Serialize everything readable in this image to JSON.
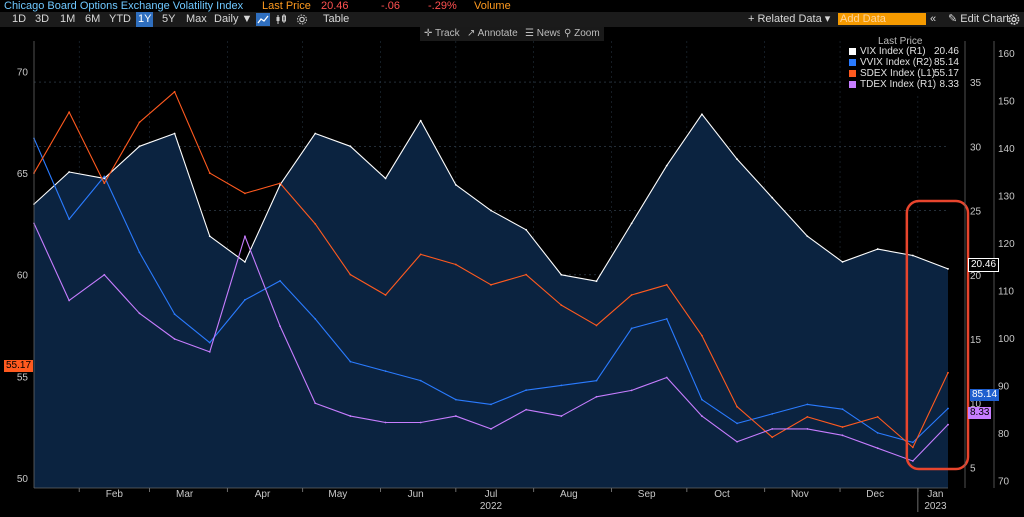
{
  "header": {
    "title": "Chicago Board Options Exchange Volatility Index",
    "last_price_label": "Last Price",
    "last_price_value": "20.46",
    "change": "-.06",
    "change_pct": "-.29%",
    "volume_label": "Volume"
  },
  "toolbar": {
    "ranges": [
      "1D",
      "3D",
      "1M",
      "6M",
      "YTD",
      "1Y",
      "5Y",
      "Max"
    ],
    "selected_range": "1Y",
    "interval": "Daily ▼",
    "table_label": "Table",
    "related_data": "+ Related Data ▾",
    "add_data_placeholder": "Add Data",
    "collapse_glyph": "«",
    "edit_chart": "✎ Edit Chart",
    "settings_icon": "gear-icon",
    "line_icon": "line-chart-icon",
    "candle_icon": "candlestick-icon"
  },
  "subtoolbar": {
    "track": "✛ Track",
    "annotate": "↗ Annotate",
    "news": "☰ News",
    "zoom": "⚲ Zoom"
  },
  "legend": {
    "header": "Last Price",
    "items": [
      {
        "label": "VIX Index  (R1)",
        "value": "20.46",
        "color": "#ffffff"
      },
      {
        "label": "VVIX Index  (R2)",
        "value": "85.14",
        "color": "#2a7bff"
      },
      {
        "label": "SDEX Index  (L1)",
        "value": "55.17",
        "color": "#ff5a1f"
      },
      {
        "label": "TDEX Index  (R1)",
        "value": "8.33",
        "color": "#c77dff"
      }
    ]
  },
  "badges": {
    "vix": "20.46",
    "vvix": "85.14",
    "sdex": "55.17",
    "tdex": "8.33"
  },
  "chart_data": {
    "type": "line",
    "x_ticks": [
      "Feb",
      "Mar",
      "Apr",
      "May",
      "Jun",
      "Jul",
      "Aug",
      "Sep",
      "Oct",
      "Nov",
      "Dec",
      "Jan"
    ],
    "x_year_labels": [
      "2022",
      "2023"
    ],
    "left_axis": {
      "ticks": [
        50,
        55,
        60,
        65,
        70
      ],
      "ylim": [
        49.5,
        71.5
      ]
    },
    "right_axis_1": {
      "ticks": [
        5,
        10,
        15,
        20,
        25,
        30,
        35
      ],
      "ylim": [
        3.4,
        38.2
      ]
    },
    "right_axis_2": {
      "ticks": [
        70,
        80,
        90,
        100,
        110,
        120,
        130,
        140,
        150,
        160
      ],
      "ylim": [
        68.4,
        162.5
      ]
    },
    "x": [
      "2022-01-14",
      "2022-01-28",
      "2022-02-11",
      "2022-02-25",
      "2022-03-11",
      "2022-03-25",
      "2022-04-08",
      "2022-04-22",
      "2022-05-06",
      "2022-05-20",
      "2022-06-03",
      "2022-06-17",
      "2022-07-01",
      "2022-07-15",
      "2022-07-29",
      "2022-08-12",
      "2022-08-26",
      "2022-09-09",
      "2022-09-23",
      "2022-10-07",
      "2022-10-21",
      "2022-11-04",
      "2022-11-18",
      "2022-12-02",
      "2022-12-16",
      "2022-12-30",
      "2023-01-13"
    ],
    "series": [
      {
        "name": "VIX Index",
        "axis": "R1",
        "color": "#ffffff",
        "values": [
          25.5,
          28.0,
          27.5,
          30.0,
          31.0,
          23.0,
          21.0,
          27.0,
          31.0,
          30.0,
          27.5,
          32.0,
          27.0,
          25.0,
          23.5,
          20.0,
          19.5,
          24.0,
          28.5,
          32.5,
          29.0,
          26.0,
          23.0,
          21.0,
          22.0,
          21.5,
          20.46
        ]
      },
      {
        "name": "VVIX Index",
        "axis": "R2",
        "color": "#2a7bff",
        "values": [
          142.0,
          125.0,
          134.0,
          118.0,
          105.0,
          99.0,
          108.0,
          112.0,
          104.0,
          95.0,
          93.0,
          91.0,
          87.0,
          86.0,
          89.0,
          90.0,
          91.0,
          102.0,
          104.0,
          87.0,
          82.0,
          84.0,
          86.0,
          85.0,
          80.0,
          78.0,
          85.14
        ]
      },
      {
        "name": "SDEX Index",
        "axis": "L1",
        "color": "#ff5a1f",
        "values": [
          65.0,
          68.0,
          64.5,
          67.5,
          69.0,
          65.0,
          64.0,
          64.5,
          62.5,
          60.0,
          59.0,
          61.0,
          60.5,
          59.5,
          60.0,
          58.5,
          57.5,
          59.0,
          59.5,
          57.0,
          53.5,
          52.0,
          53.0,
          52.5,
          53.0,
          51.5,
          55.17
        ]
      },
      {
        "name": "TDEX Index",
        "axis": "R1",
        "color": "#c77dff",
        "values": [
          24.0,
          18.0,
          20.0,
          17.0,
          15.0,
          14.0,
          23.0,
          16.0,
          10.0,
          9.0,
          8.5,
          8.5,
          9.0,
          8.0,
          9.5,
          9.0,
          10.5,
          11.0,
          12.0,
          9.0,
          7.0,
          8.0,
          8.0,
          7.5,
          6.5,
          5.5,
          8.33
        ]
      }
    ],
    "highlight": {
      "from": "2022-12-30",
      "to": "2023-01-13",
      "color": "#e8452d"
    },
    "grid": true,
    "legend_position": "top-right"
  }
}
